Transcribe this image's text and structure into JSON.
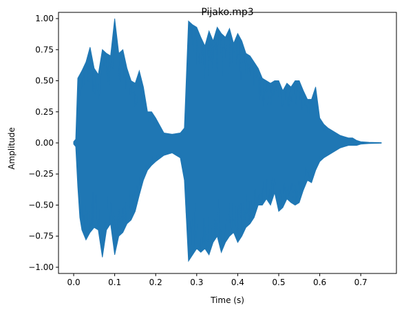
{
  "chart_data": {
    "type": "line",
    "title": "Pijako.mp3",
    "xlabel": "Time (s)",
    "ylabel": "Amplitude",
    "xlim": [
      -0.037,
      0.787
    ],
    "ylim": [
      -1.05,
      1.05
    ],
    "xticks": [
      0.0,
      0.1,
      0.2,
      0.3,
      0.4,
      0.5,
      0.6,
      0.7
    ],
    "xtick_labels": [
      "0.0",
      "0.1",
      "0.2",
      "0.3",
      "0.4",
      "0.5",
      "0.6",
      "0.7"
    ],
    "yticks": [
      1.0,
      0.75,
      0.5,
      0.25,
      0.0,
      -0.25,
      -0.5,
      -0.75,
      -1.0
    ],
    "ytick_labels": [
      "1.00",
      "0.75",
      "0.50",
      "0.25",
      "0.00",
      "−0.25",
      "−0.50",
      "−0.75",
      "−1.00"
    ],
    "grid": false,
    "series": [
      {
        "color": "#1f77b4",
        "x": [
          0.0,
          0.005,
          0.01,
          0.015,
          0.02,
          0.03,
          0.04,
          0.05,
          0.06,
          0.07,
          0.08,
          0.09,
          0.1,
          0.11,
          0.12,
          0.13,
          0.14,
          0.15,
          0.16,
          0.17,
          0.18,
          0.19,
          0.2,
          0.22,
          0.24,
          0.26,
          0.27,
          0.28,
          0.29,
          0.3,
          0.31,
          0.32,
          0.33,
          0.34,
          0.35,
          0.36,
          0.37,
          0.38,
          0.39,
          0.4,
          0.41,
          0.42,
          0.43,
          0.44,
          0.45,
          0.46,
          0.47,
          0.48,
          0.49,
          0.5,
          0.51,
          0.52,
          0.53,
          0.54,
          0.55,
          0.56,
          0.57,
          0.58,
          0.59,
          0.6,
          0.61,
          0.62,
          0.63,
          0.64,
          0.65,
          0.66,
          0.67,
          0.68,
          0.69,
          0.7,
          0.72,
          0.75
        ],
        "upper": [
          0.01,
          0.03,
          0.52,
          0.55,
          0.58,
          0.65,
          0.77,
          0.6,
          0.55,
          0.75,
          0.72,
          0.7,
          1.0,
          0.72,
          0.75,
          0.6,
          0.5,
          0.48,
          0.58,
          0.45,
          0.25,
          0.25,
          0.2,
          0.08,
          0.07,
          0.08,
          0.12,
          0.98,
          0.95,
          0.93,
          0.85,
          0.78,
          0.9,
          0.82,
          0.93,
          0.88,
          0.85,
          0.92,
          0.8,
          0.88,
          0.82,
          0.72,
          0.7,
          0.65,
          0.6,
          0.52,
          0.5,
          0.48,
          0.5,
          0.5,
          0.42,
          0.48,
          0.45,
          0.5,
          0.5,
          0.42,
          0.35,
          0.35,
          0.45,
          0.2,
          0.15,
          0.12,
          0.1,
          0.08,
          0.06,
          0.05,
          0.04,
          0.04,
          0.02,
          0.01,
          0.005,
          0.002
        ],
        "lower": [
          -0.01,
          -0.03,
          -0.35,
          -0.6,
          -0.7,
          -0.78,
          -0.72,
          -0.68,
          -0.7,
          -0.92,
          -0.7,
          -0.65,
          -0.9,
          -0.75,
          -0.72,
          -0.65,
          -0.62,
          -0.55,
          -0.42,
          -0.3,
          -0.22,
          -0.18,
          -0.15,
          -0.1,
          -0.08,
          -0.12,
          -0.3,
          -0.95,
          -0.9,
          -0.85,
          -0.88,
          -0.85,
          -0.9,
          -0.8,
          -0.75,
          -0.88,
          -0.8,
          -0.75,
          -0.72,
          -0.8,
          -0.75,
          -0.68,
          -0.65,
          -0.6,
          -0.5,
          -0.5,
          -0.45,
          -0.5,
          -0.4,
          -0.55,
          -0.52,
          -0.45,
          -0.48,
          -0.5,
          -0.48,
          -0.38,
          -0.3,
          -0.32,
          -0.22,
          -0.15,
          -0.12,
          -0.1,
          -0.08,
          -0.06,
          -0.04,
          -0.03,
          -0.02,
          -0.02,
          -0.02,
          -0.01,
          -0.005,
          -0.002
        ]
      }
    ]
  }
}
